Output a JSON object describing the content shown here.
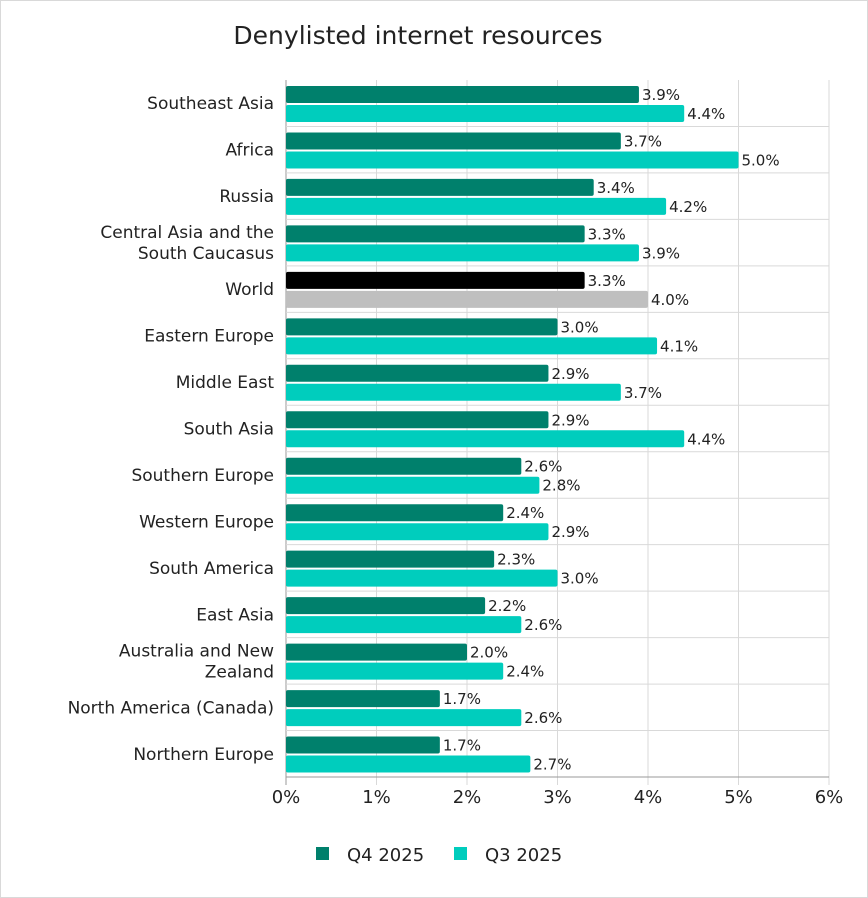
{
  "chart_data": {
    "type": "bar",
    "orientation": "horizontal",
    "title": "Denylisted internet resources",
    "xlabel": "",
    "ylabel": "",
    "xlim": [
      0,
      6
    ],
    "x_ticks": [
      "0%",
      "1%",
      "2%",
      "3%",
      "4%",
      "5%",
      "6%"
    ],
    "grid": "horizontal separators between categories, vertical at ticks",
    "legend_position": "bottom",
    "categories": [
      [
        "Southeast Asia"
      ],
      [
        "Africa"
      ],
      [
        "Russia"
      ],
      [
        "Central Asia and the",
        "South Caucasus"
      ],
      [
        "World"
      ],
      [
        "Eastern Europe"
      ],
      [
        "Middle East"
      ],
      [
        "South Asia"
      ],
      [
        "Southern Europe"
      ],
      [
        "Western Europe"
      ],
      [
        "South America"
      ],
      [
        "East Asia"
      ],
      [
        "Australia and New",
        "Zealand"
      ],
      [
        "North America (Canada)"
      ],
      [
        "Northern Europe"
      ]
    ],
    "series": [
      {
        "name": "Q4 2025",
        "color": "#00806c",
        "highlight_color": "#000000",
        "values": [
          3.9,
          3.7,
          3.4,
          3.3,
          3.3,
          3.0,
          2.9,
          2.9,
          2.6,
          2.4,
          2.3,
          2.2,
          2.0,
          1.7,
          1.7
        ],
        "labels": [
          "3.9%",
          "3.7%",
          "3.4%",
          "3.3%",
          "3.3%",
          "3.0%",
          "2.9%",
          "2.9%",
          "2.6%",
          "2.4%",
          "2.3%",
          "2.2%",
          "2.0%",
          "1.7%",
          "1.7%"
        ]
      },
      {
        "name": "Q3 2025",
        "color": "#00cdbd",
        "highlight_color": "#bfbfbf",
        "values": [
          4.4,
          5.0,
          4.2,
          3.9,
          4.0,
          4.1,
          3.7,
          4.4,
          2.8,
          2.9,
          3.0,
          2.6,
          2.4,
          2.6,
          2.7
        ],
        "labels": [
          "4.4%",
          "5.0%",
          "4.2%",
          "3.9%",
          "4.0%",
          "4.1%",
          "3.7%",
          "4.4%",
          "2.8%",
          "2.9%",
          "3.0%",
          "2.6%",
          "2.4%",
          "2.6%",
          "2.7%"
        ]
      }
    ],
    "highlight_category_index": 4
  }
}
